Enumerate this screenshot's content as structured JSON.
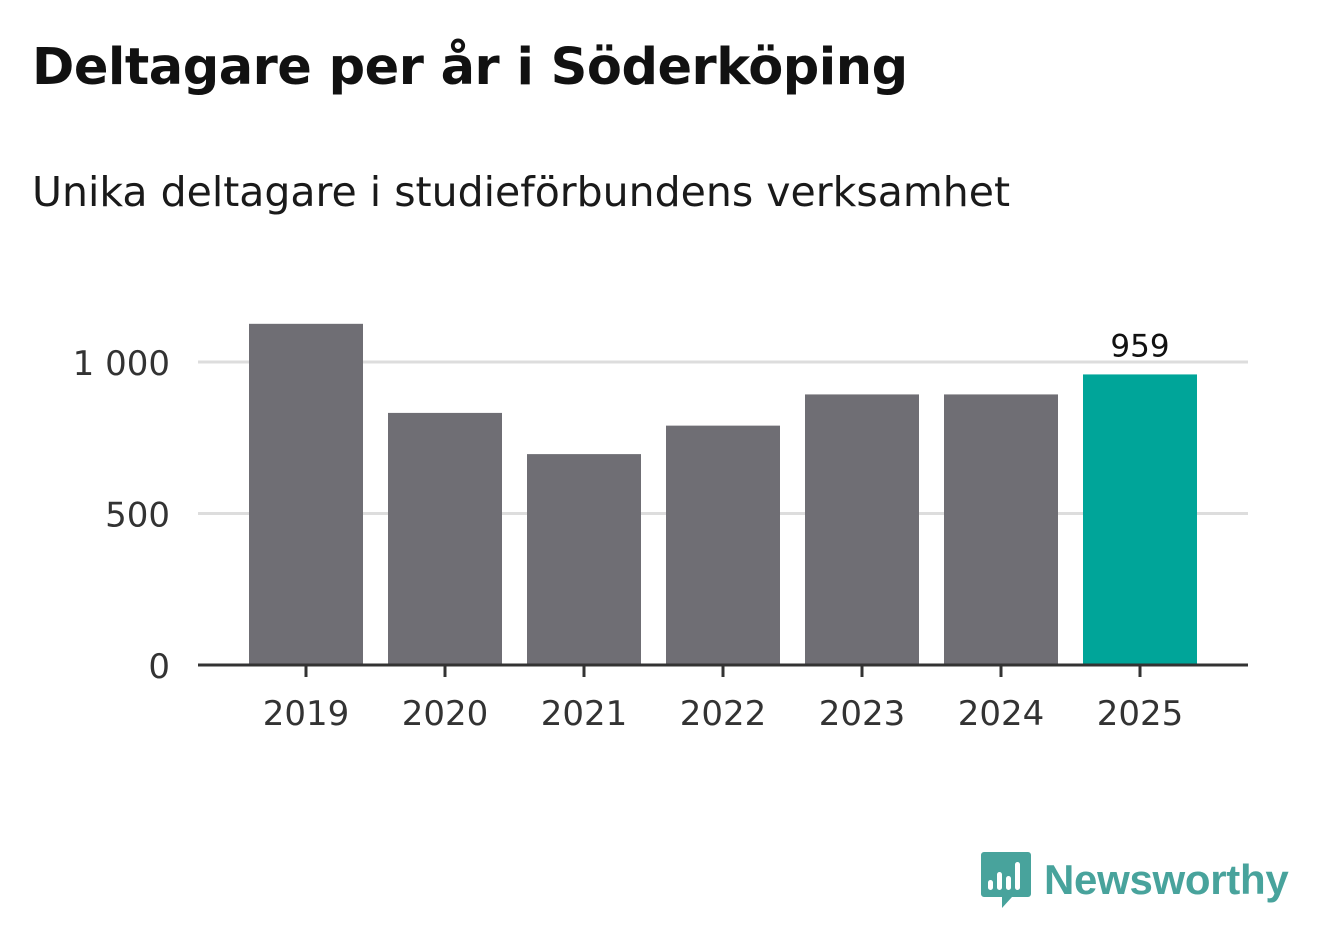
{
  "title": "Deltagare per år i Söderköping",
  "subtitle": "Unika deltagare i studieförbundens verksamhet",
  "brand": {
    "name": "Newsworthy",
    "color": "#48a39c",
    "icon": "bar-chart-speech-bubble-icon"
  },
  "colors": {
    "bar": "#6f6e74",
    "highlight": "#00a599",
    "grid": "#dddddd",
    "axis": "#333333",
    "tick_text": "#333333"
  },
  "chart_data": {
    "type": "bar",
    "title": "Deltagare per år i Söderköping",
    "subtitle": "Unika deltagare i studieförbundens verksamhet",
    "xlabel": "",
    "ylabel": "",
    "categories": [
      "2019",
      "2020",
      "2021",
      "2022",
      "2023",
      "2024",
      "2025"
    ],
    "values": [
      1126,
      832,
      696,
      790,
      893,
      893,
      959
    ],
    "highlight_index": 6,
    "data_labels": [
      "",
      "",
      "",
      "",
      "",
      "",
      "959"
    ],
    "ylim": [
      0,
      1000
    ],
    "yticks": [
      0,
      500,
      1000
    ],
    "ytick_labels": [
      "0",
      "500",
      "1 000"
    ],
    "grid": true,
    "legend": "none"
  }
}
